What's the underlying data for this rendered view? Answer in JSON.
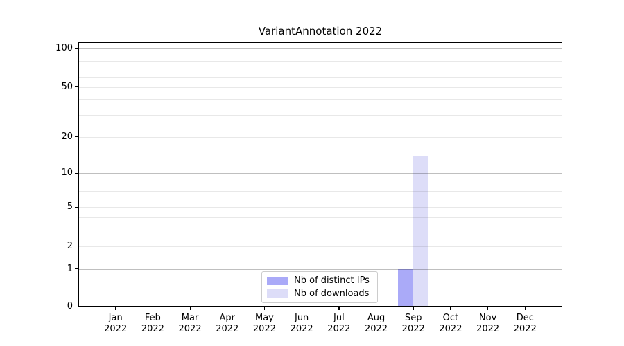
{
  "chart_data": {
    "type": "bar",
    "title": "VariantAnnotation 2022",
    "year": "2022",
    "categories": [
      "Jan",
      "Feb",
      "Mar",
      "Apr",
      "May",
      "Jun",
      "Jul",
      "Aug",
      "Sep",
      "Oct",
      "Nov",
      "Dec"
    ],
    "series": [
      {
        "name": "Nb of distinct IPs",
        "color": "#aaaaf8",
        "values": [
          0,
          0,
          0,
          0,
          0,
          0,
          0,
          0,
          1,
          0,
          0,
          0
        ]
      },
      {
        "name": "Nb of downloads",
        "color": "#ddddf8",
        "values": [
          0,
          0,
          0,
          0,
          0,
          0,
          0,
          0,
          14,
          0,
          0,
          0
        ]
      }
    ],
    "xlabel": "",
    "ylabel": "",
    "y_axis": {
      "scale": "log10(value+1)",
      "tick_values": [
        0,
        1,
        2,
        5,
        10,
        20,
        50,
        100
      ],
      "ylim": [
        0,
        112
      ],
      "major_gridlines": [
        1,
        10,
        100
      ],
      "minor_gridlines": [
        2,
        3,
        4,
        5,
        6,
        7,
        8,
        9,
        20,
        30,
        40,
        50,
        60,
        70,
        80,
        90
      ]
    },
    "grid": true,
    "legend_position": "bottom-center"
  }
}
